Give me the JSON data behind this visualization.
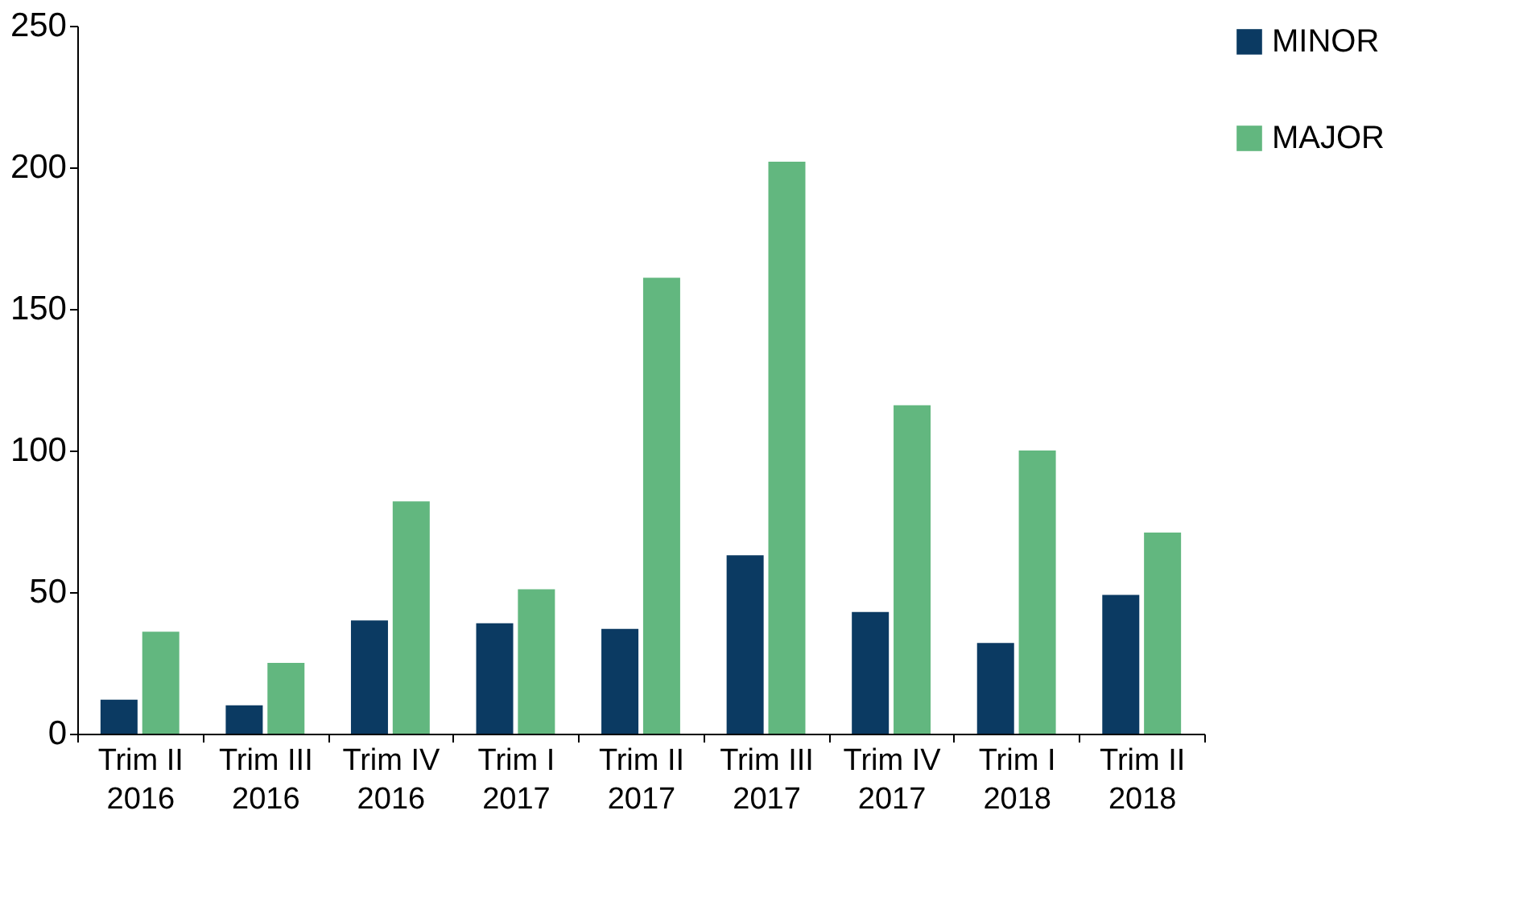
{
  "chart_data": {
    "type": "bar",
    "categories": [
      "Trim II\n2016",
      "Trim III\n2016",
      "Trim IV\n2016",
      "Trim I\n2017",
      "Trim II\n2017",
      "Trim III\n2017",
      "Trim IV\n2017",
      "Trim I\n2018",
      "Trim II\n2018"
    ],
    "series": [
      {
        "name": "MINOR",
        "color": "#0b3a62",
        "values": [
          12,
          10,
          40,
          39,
          37,
          63,
          43,
          32,
          49
        ]
      },
      {
        "name": "MAJOR",
        "color": "#62b77f",
        "values": [
          36,
          25,
          82,
          51,
          161,
          202,
          116,
          100,
          71
        ]
      }
    ],
    "ylim": [
      0,
      250
    ],
    "yticks": [
      0,
      50,
      100,
      150,
      200,
      250
    ],
    "grid": false,
    "legend": "right"
  }
}
